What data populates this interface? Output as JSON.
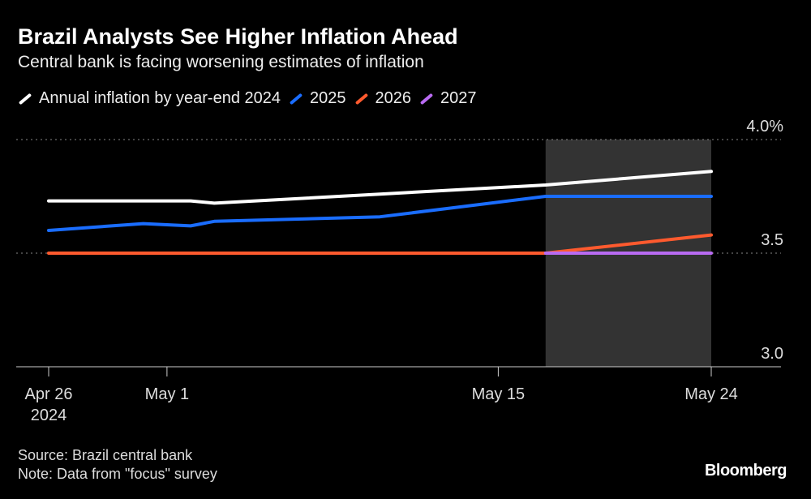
{
  "title": "Brazil Analysts See Higher Inflation Ahead",
  "subtitle": "Central bank is facing worsening estimates of inflation",
  "footer": {
    "source": "Source: Brazil central bank",
    "note": "Note: Data from \"focus\" survey"
  },
  "logo": "Bloomberg",
  "chart_data": {
    "type": "line",
    "title": "Brazil Analysts See Higher Inflation Ahead",
    "subtitle": "Central bank is facing worsening estimates of inflation",
    "legend_placement": "top-left",
    "x_ticks": [
      {
        "date": "2024-04-26",
        "label": "Apr 26",
        "sublabel": "2024"
      },
      {
        "date": "2024-05-01",
        "label": "May 1"
      },
      {
        "date": "2024-05-15",
        "label": "May 15"
      },
      {
        "date": "2024-05-24",
        "label": "May 24"
      }
    ],
    "xlim": [
      "2024-04-26",
      "2024-05-24"
    ],
    "y_ticks": [
      {
        "value": 3.0,
        "label": "3.0"
      },
      {
        "value": 3.5,
        "label": "3.5"
      },
      {
        "value": 4.0,
        "label": "4.0%"
      }
    ],
    "ylim": [
      3.0,
      4.0
    ],
    "grid": "horizontal dotted",
    "highlight_range": {
      "start": "2024-05-17",
      "end": "2024-05-24",
      "color": "#333333"
    },
    "series": [
      {
        "name": "Annual inflation by year-end 2024",
        "color": "#ffffff",
        "x": [
          "2024-04-26",
          "2024-04-30",
          "2024-05-02",
          "2024-05-03",
          "2024-05-10",
          "2024-05-17",
          "2024-05-24"
        ],
        "y": [
          3.73,
          3.73,
          3.73,
          3.72,
          3.76,
          3.8,
          3.86
        ]
      },
      {
        "name": "2025",
        "color": "#1a6dff",
        "x": [
          "2024-04-26",
          "2024-04-30",
          "2024-05-02",
          "2024-05-03",
          "2024-05-10",
          "2024-05-17",
          "2024-05-24"
        ],
        "y": [
          3.6,
          3.63,
          3.62,
          3.64,
          3.66,
          3.75,
          3.75
        ]
      },
      {
        "name": "2026",
        "color": "#ff5a2e",
        "x": [
          "2024-04-26",
          "2024-05-17",
          "2024-05-24"
        ],
        "y": [
          3.5,
          3.5,
          3.58
        ]
      },
      {
        "name": "2027",
        "color": "#b96bf2",
        "x": [
          "2024-05-17",
          "2024-05-24"
        ],
        "y": [
          3.5,
          3.5
        ]
      }
    ]
  }
}
